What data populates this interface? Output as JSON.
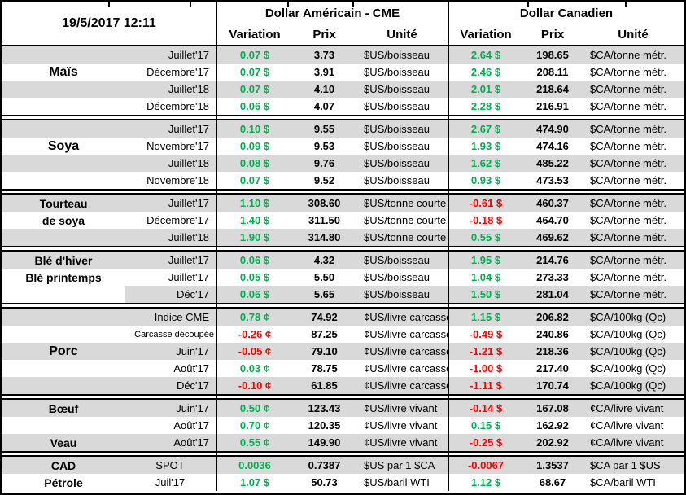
{
  "title_datetime": "19/5/2017 12:11",
  "sections": {
    "us": "Dollar Américain - CME",
    "ca": "Dollar Canadien"
  },
  "columns": [
    "Variation",
    "Prix",
    "Unité"
  ],
  "colors": {
    "positive": "#00B050",
    "negative": "#FF0000",
    "row_stripe": "#D9D9D9",
    "border": "#000000"
  },
  "blocks": [
    {
      "id": "mais",
      "labels": [
        {
          "row": 1,
          "text": "Maïs"
        }
      ],
      "rows": [
        {
          "month": "Juillet'17",
          "us_var": "0.07 $",
          "us_dir": "pos",
          "us_prix": "3.73",
          "us_unit": "$US/boisseau",
          "ca_var": "2.64 $",
          "ca_dir": "pos",
          "ca_prix": "198.65",
          "ca_unit": "$CA/tonne métr."
        },
        {
          "month": "Décembre'17",
          "us_var": "0.07 $",
          "us_dir": "pos",
          "us_prix": "3.91",
          "us_unit": "$US/boisseau",
          "ca_var": "2.46 $",
          "ca_dir": "pos",
          "ca_prix": "208.11",
          "ca_unit": "$CA/tonne métr."
        },
        {
          "month": "Juillet'18",
          "us_var": "0.07 $",
          "us_dir": "pos",
          "us_prix": "4.10",
          "us_unit": "$US/boisseau",
          "ca_var": "2.01 $",
          "ca_dir": "pos",
          "ca_prix": "218.64",
          "ca_unit": "$CA/tonne métr."
        },
        {
          "month": "Décembre'18",
          "us_var": "0.06 $",
          "us_dir": "pos",
          "us_prix": "4.07",
          "us_unit": "$US/boisseau",
          "ca_var": "2.28 $",
          "ca_dir": "pos",
          "ca_prix": "216.91",
          "ca_unit": "$CA/tonne métr."
        }
      ]
    },
    {
      "id": "soya",
      "labels": [
        {
          "row": 1,
          "text": "Soya"
        }
      ],
      "rows": [
        {
          "month": "Juillet'17",
          "us_var": "0.10 $",
          "us_dir": "pos",
          "us_prix": "9.55",
          "us_unit": "$US/boisseau",
          "ca_var": "2.67 $",
          "ca_dir": "pos",
          "ca_prix": "474.90",
          "ca_unit": "$CA/tonne métr."
        },
        {
          "month": "Novembre'17",
          "us_var": "0.09 $",
          "us_dir": "pos",
          "us_prix": "9.53",
          "us_unit": "$US/boisseau",
          "ca_var": "1.93 $",
          "ca_dir": "pos",
          "ca_prix": "474.16",
          "ca_unit": "$CA/tonne métr."
        },
        {
          "month": "Juillet'18",
          "us_var": "0.08 $",
          "us_dir": "pos",
          "us_prix": "9.76",
          "us_unit": "$US/boisseau",
          "ca_var": "1.62 $",
          "ca_dir": "pos",
          "ca_prix": "485.22",
          "ca_unit": "$CA/tonne métr."
        },
        {
          "month": "Novembre'18",
          "us_var": "0.07 $",
          "us_dir": "pos",
          "us_prix": "9.52",
          "us_unit": "$US/boisseau",
          "ca_var": "0.93 $",
          "ca_dir": "pos",
          "ca_prix": "473.53",
          "ca_unit": "$CA/tonne métr."
        }
      ]
    },
    {
      "id": "tourteau",
      "labels": [
        {
          "row": 0,
          "text": "Tourteau"
        },
        {
          "row": 1,
          "text": "de soya"
        }
      ],
      "rows": [
        {
          "month": "Juillet'17",
          "us_var": "1.10 $",
          "us_dir": "pos",
          "us_prix": "308.60",
          "us_unit": "$US/tonne courte",
          "ca_var": "-0.61 $",
          "ca_dir": "neg",
          "ca_prix": "460.37",
          "ca_unit": "$CA/tonne métr."
        },
        {
          "month": "Décembre'17",
          "us_var": "1.40 $",
          "us_dir": "pos",
          "us_prix": "311.50",
          "us_unit": "$US/tonne courte",
          "ca_var": "-0.18 $",
          "ca_dir": "neg",
          "ca_prix": "464.70",
          "ca_unit": "$CA/tonne métr."
        },
        {
          "month": "Juillet'18",
          "us_var": "1.90 $",
          "us_dir": "pos",
          "us_prix": "314.80",
          "us_unit": "$US/tonne courte",
          "ca_var": "0.55 $",
          "ca_dir": "pos",
          "ca_prix": "469.62",
          "ca_unit": "$CA/tonne métr."
        }
      ]
    },
    {
      "id": "ble",
      "labels": [
        {
          "row": 0,
          "text": "Blé d'hiver"
        },
        {
          "row": 1,
          "rowspan": 2,
          "text": "Blé printemps"
        }
      ],
      "rows": [
        {
          "month": "Juillet'17",
          "us_var": "0.06 $",
          "us_dir": "pos",
          "us_prix": "4.32",
          "us_unit": "$US/boisseau",
          "ca_var": "1.95 $",
          "ca_dir": "pos",
          "ca_prix": "214.76",
          "ca_unit": "$CA/tonne métr."
        },
        {
          "month": "Juillet'17",
          "us_var": "0.05 $",
          "us_dir": "pos",
          "us_prix": "5.50",
          "us_unit": "$US/boisseau",
          "ca_var": "1.04 $",
          "ca_dir": "pos",
          "ca_prix": "273.33",
          "ca_unit": "$CA/tonne métr."
        },
        {
          "month": "Déc'17",
          "us_var": "0.06 $",
          "us_dir": "pos",
          "us_prix": "5.65",
          "us_unit": "$US/boisseau",
          "ca_var": "1.50 $",
          "ca_dir": "pos",
          "ca_prix": "281.04",
          "ca_unit": "$CA/tonne métr."
        }
      ]
    },
    {
      "id": "porc",
      "labels": [
        {
          "row": 2,
          "text": "Porc"
        }
      ],
      "rows": [
        {
          "month": "Indice CME",
          "us_var": "0.78 ¢",
          "us_dir": "pos",
          "us_prix": "74.92",
          "us_unit": "¢US/livre carcasse",
          "ca_var": "1.15 $",
          "ca_dir": "pos",
          "ca_prix": "206.82",
          "ca_unit": "$CA/100kg (Qc)"
        },
        {
          "month": "Carcasse découpée",
          "us_var": "-0.26 ¢",
          "us_dir": "neg",
          "us_prix": "87.25",
          "us_unit": "¢US/livre carcasse",
          "ca_var": "-0.49 $",
          "ca_dir": "neg",
          "ca_prix": "240.86",
          "ca_unit": "$CA/100kg (Qc)"
        },
        {
          "month": "Juin'17",
          "us_var": "-0.05 ¢",
          "us_dir": "neg",
          "us_prix": "79.10",
          "us_unit": "¢US/livre carcasse",
          "ca_var": "-1.21 $",
          "ca_dir": "neg",
          "ca_prix": "218.36",
          "ca_unit": "$CA/100kg (Qc)"
        },
        {
          "month": "Août'17",
          "us_var": "0.03 ¢",
          "us_dir": "pos",
          "us_prix": "78.75",
          "us_unit": "¢US/livre carcasse",
          "ca_var": "-1.00 $",
          "ca_dir": "neg",
          "ca_prix": "217.40",
          "ca_unit": "$CA/100kg (Qc)"
        },
        {
          "month": "Déc'17",
          "us_var": "-0.10 ¢",
          "us_dir": "neg",
          "us_prix": "61.85",
          "us_unit": "¢US/livre carcasse",
          "ca_var": "-1.11 $",
          "ca_dir": "neg",
          "ca_prix": "170.74",
          "ca_unit": "$CA/100kg (Qc)"
        }
      ]
    },
    {
      "id": "boeuf",
      "labels": [
        {
          "row": 0,
          "text": "Bœuf"
        },
        {
          "row": 2,
          "text": "Veau"
        }
      ],
      "rows": [
        {
          "month": "Juin'17",
          "us_var": "0.50 ¢",
          "us_dir": "pos",
          "us_prix": "123.43",
          "us_unit": "¢US/livre vivant",
          "ca_var": "-0.14 $",
          "ca_dir": "neg",
          "ca_prix": "167.08",
          "ca_unit": "¢CA/livre vivant"
        },
        {
          "month": "Août'17",
          "us_var": "0.70 ¢",
          "us_dir": "pos",
          "us_prix": "120.35",
          "us_unit": "¢US/livre vivant",
          "ca_var": "0.15 $",
          "ca_dir": "pos",
          "ca_prix": "162.92",
          "ca_unit": "¢CA/livre vivant"
        },
        {
          "month": "Août'17",
          "us_var": "0.55 ¢",
          "us_dir": "pos",
          "us_prix": "149.90",
          "us_unit": "¢US/livre vivant",
          "ca_var": "-0.25 $",
          "ca_dir": "neg",
          "ca_prix": "202.92",
          "ca_unit": "¢CA/livre vivant"
        }
      ]
    },
    {
      "id": "cad",
      "labels": [
        {
          "row": 0,
          "text": "CAD"
        },
        {
          "row": 1,
          "text": "Pétrole"
        }
      ],
      "rows": [
        {
          "month": "SPOT",
          "us_var": "0.0036",
          "us_dir": "pos",
          "us_prix": "0.7387",
          "us_unit": "$US par 1 $CA",
          "ca_var": "-0.0067",
          "ca_dir": "neg",
          "ca_prix": "1.3537",
          "ca_unit": "$CA par 1 $US"
        },
        {
          "month": "Juil'17",
          "us_var": "1.07 $",
          "us_dir": "pos",
          "us_prix": "50.73",
          "us_unit": "$US/baril WTI",
          "ca_var": "1.12 $",
          "ca_dir": "pos",
          "ca_prix": "68.67",
          "ca_unit": "$CA/baril WTI"
        }
      ]
    }
  ]
}
